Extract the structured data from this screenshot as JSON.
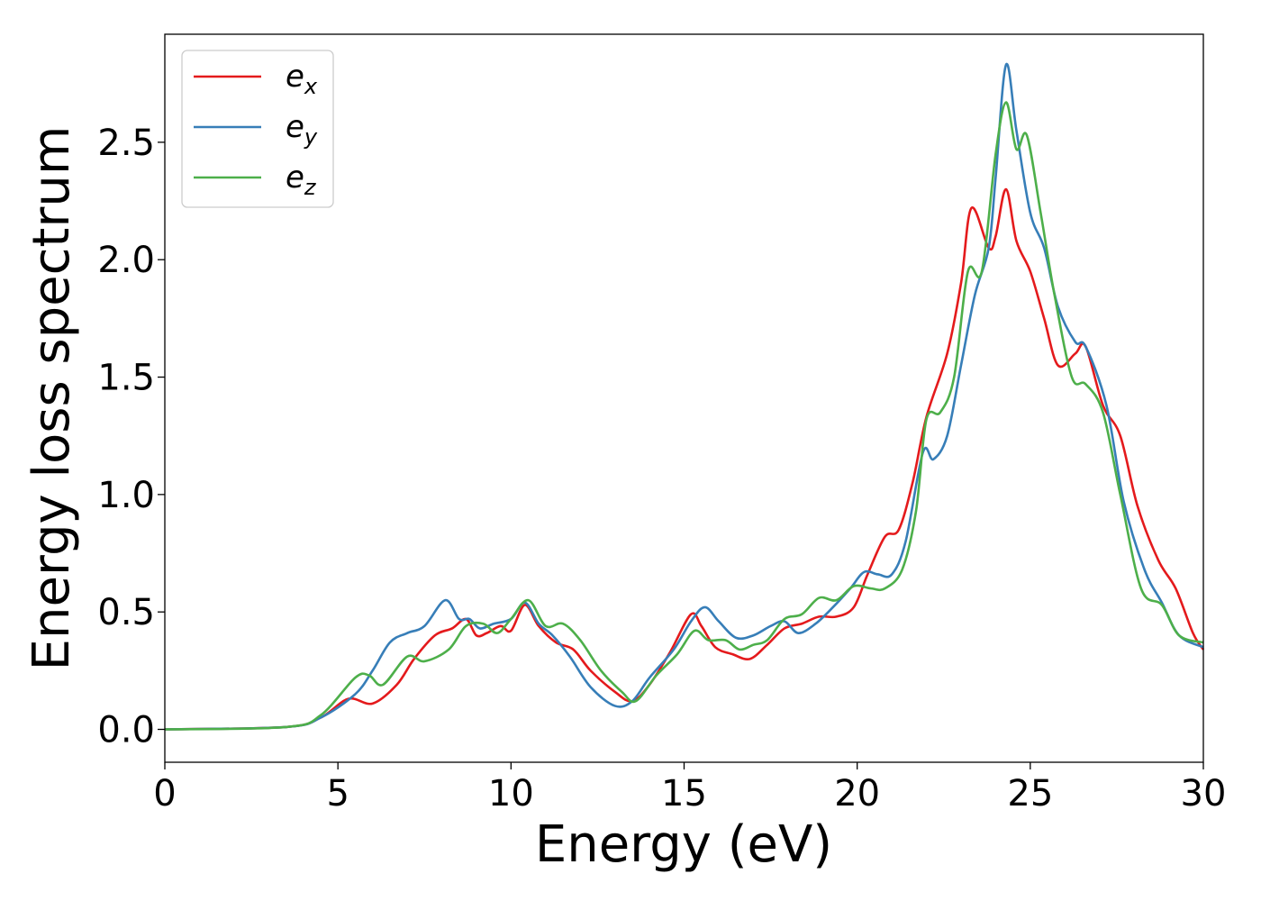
{
  "chart_data": {
    "type": "line",
    "title": "",
    "xlabel": "Energy (eV)",
    "ylabel": "Energy loss spectrum",
    "xlim": [
      0,
      30
    ],
    "ylim": [
      -0.14,
      2.96
    ],
    "xticks": [
      "0",
      "5",
      "10",
      "15",
      "20",
      "25",
      "30"
    ],
    "yticks": [
      "0.0",
      "0.5",
      "1.0",
      "1.5",
      "2.0",
      "2.5"
    ],
    "grid": false,
    "legend_position": "top-left",
    "series": [
      {
        "name": "e_x",
        "label_base": "e",
        "label_sub": "x",
        "color": "#e41a1c",
        "x": [
          0,
          3.5,
          4.5,
          5.3,
          6.0,
          6.7,
          7.2,
          7.8,
          8.3,
          8.7,
          9.0,
          9.3,
          9.7,
          10.0,
          10.4,
          10.8,
          11.3,
          11.8,
          12.3,
          13.0,
          13.5,
          14.0,
          14.6,
          15.2,
          15.5,
          15.9,
          16.4,
          16.9,
          17.4,
          17.9,
          18.4,
          18.9,
          19.4,
          19.9,
          20.3,
          20.8,
          21.2,
          21.6,
          22.0,
          22.6,
          23.0,
          23.3,
          23.8,
          24.0,
          24.3,
          24.6,
          25.0,
          25.4,
          25.8,
          26.3,
          26.6,
          27.1,
          27.6,
          28.1,
          28.7,
          29.2,
          29.7,
          30.0
        ],
        "y": [
          0.0,
          0.01,
          0.05,
          0.13,
          0.11,
          0.19,
          0.3,
          0.4,
          0.43,
          0.47,
          0.4,
          0.41,
          0.44,
          0.42,
          0.53,
          0.44,
          0.37,
          0.34,
          0.25,
          0.16,
          0.12,
          0.19,
          0.33,
          0.49,
          0.44,
          0.35,
          0.32,
          0.3,
          0.36,
          0.43,
          0.45,
          0.48,
          0.48,
          0.52,
          0.66,
          0.82,
          0.85,
          1.05,
          1.33,
          1.6,
          1.9,
          2.22,
          2.05,
          2.1,
          2.3,
          2.08,
          1.95,
          1.75,
          1.55,
          1.6,
          1.63,
          1.38,
          1.25,
          0.95,
          0.72,
          0.6,
          0.41,
          0.34
        ]
      },
      {
        "name": "e_y",
        "label_base": "e",
        "label_sub": "y",
        "color": "#377eb8",
        "x": [
          0,
          3.5,
          4.5,
          5.5,
          6.0,
          6.5,
          7.0,
          7.5,
          8.1,
          8.5,
          8.8,
          9.1,
          9.5,
          10.0,
          10.4,
          10.8,
          11.2,
          11.7,
          12.3,
          13.0,
          13.5,
          14.0,
          14.7,
          15.2,
          15.6,
          16.0,
          16.5,
          17.0,
          17.5,
          17.9,
          18.3,
          18.8,
          19.3,
          19.8,
          20.2,
          20.6,
          21.0,
          21.4,
          21.9,
          22.2,
          22.6,
          23.0,
          23.4,
          23.8,
          24.0,
          24.3,
          24.6,
          25.0,
          25.4,
          25.8,
          26.3,
          26.6,
          27.2,
          27.7,
          28.3,
          28.8,
          29.3,
          30.0
        ],
        "y": [
          0.0,
          0.01,
          0.05,
          0.15,
          0.25,
          0.37,
          0.41,
          0.44,
          0.55,
          0.47,
          0.47,
          0.43,
          0.45,
          0.47,
          0.54,
          0.45,
          0.4,
          0.31,
          0.18,
          0.1,
          0.12,
          0.22,
          0.34,
          0.46,
          0.52,
          0.46,
          0.39,
          0.4,
          0.44,
          0.46,
          0.41,
          0.45,
          0.52,
          0.6,
          0.67,
          0.66,
          0.66,
          0.8,
          1.18,
          1.15,
          1.25,
          1.55,
          1.85,
          2.05,
          2.35,
          2.83,
          2.55,
          2.2,
          2.05,
          1.8,
          1.65,
          1.63,
          1.38,
          0.97,
          0.68,
          0.54,
          0.4,
          0.35
        ]
      },
      {
        "name": "e_z",
        "label_base": "e",
        "label_sub": "z",
        "color": "#4daf4a",
        "x": [
          0,
          3.5,
          4.5,
          5.5,
          5.9,
          6.3,
          7.0,
          7.5,
          8.2,
          8.7,
          9.2,
          9.6,
          10.0,
          10.5,
          11.0,
          11.5,
          12.0,
          12.6,
          13.2,
          13.6,
          14.2,
          14.8,
          15.3,
          15.7,
          16.2,
          16.6,
          17.0,
          17.4,
          17.9,
          18.4,
          18.9,
          19.4,
          19.9,
          20.4,
          20.8,
          21.3,
          21.7,
          22.0,
          22.4,
          22.8,
          23.2,
          23.6,
          24.0,
          24.3,
          24.6,
          24.9,
          25.3,
          25.7,
          26.2,
          26.6,
          27.1,
          27.6,
          28.2,
          28.8,
          29.3,
          30.0
        ],
        "y": [
          0.0,
          0.01,
          0.06,
          0.22,
          0.23,
          0.19,
          0.31,
          0.29,
          0.34,
          0.44,
          0.45,
          0.41,
          0.47,
          0.55,
          0.44,
          0.45,
          0.38,
          0.25,
          0.16,
          0.12,
          0.23,
          0.32,
          0.42,
          0.38,
          0.38,
          0.34,
          0.36,
          0.38,
          0.47,
          0.49,
          0.56,
          0.55,
          0.61,
          0.6,
          0.6,
          0.68,
          0.93,
          1.32,
          1.35,
          1.5,
          1.95,
          1.95,
          2.45,
          2.67,
          2.47,
          2.53,
          2.2,
          1.85,
          1.5,
          1.47,
          1.35,
          1.0,
          0.6,
          0.53,
          0.4,
          0.37
        ]
      }
    ]
  }
}
